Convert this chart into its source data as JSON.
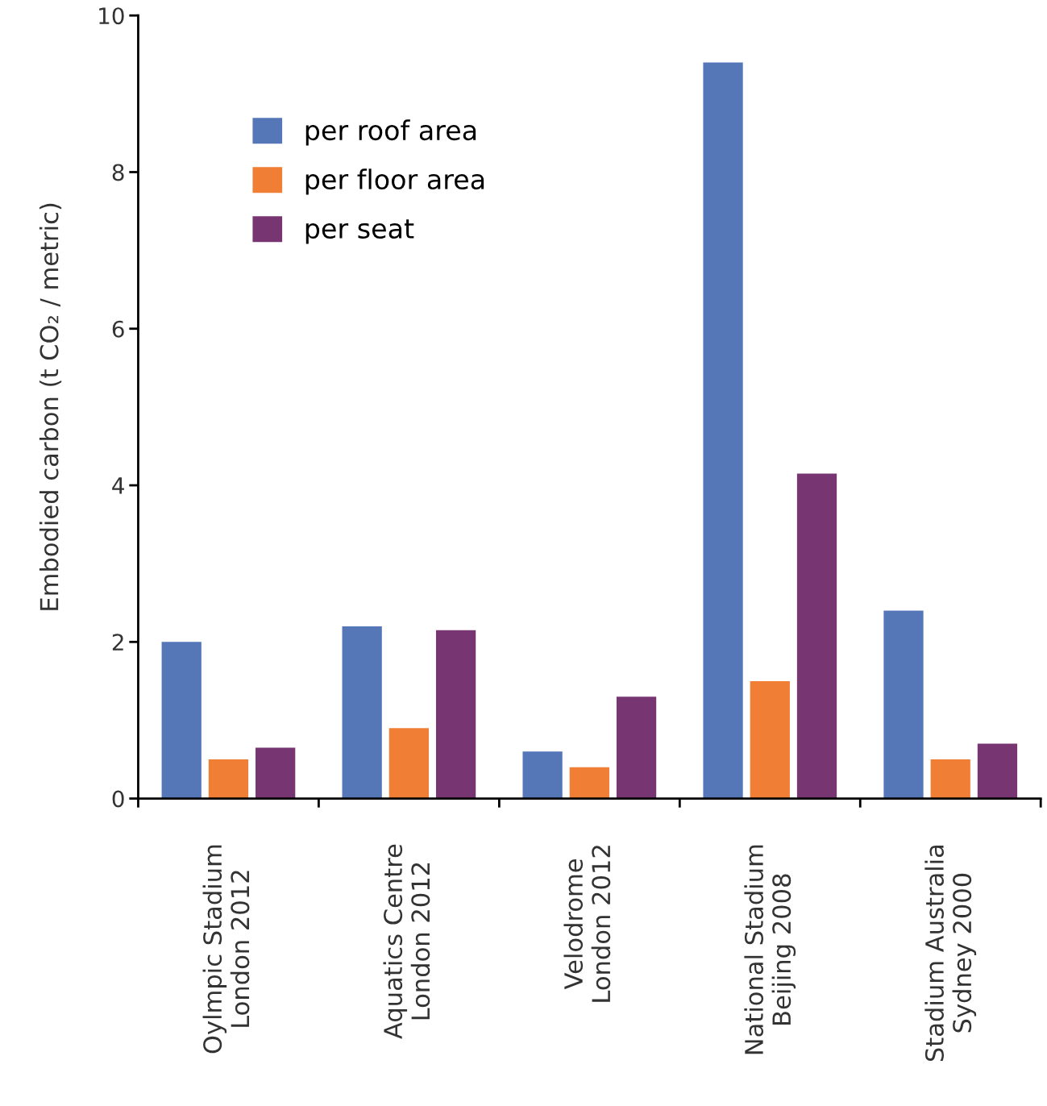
{
  "chart_data": {
    "type": "bar",
    "ylabel": "Embodied carbon (t CO₂ / metric)",
    "categories": [
      "Oylmpic Stadium\nLondon 2012",
      "Aquatics Centre\nLondon 2012",
      "Velodrome\nLondon 2012",
      "National Stadium\nBeijing 2008",
      "Stadium Australia\nSydney 2000"
    ],
    "series": [
      {
        "name": "per roof area",
        "color": "#5577b8",
        "values": [
          2.0,
          2.2,
          0.6,
          9.4,
          2.4
        ]
      },
      {
        "name": "per floor area",
        "color": "#f07f35",
        "values": [
          0.5,
          0.9,
          0.4,
          1.5,
          0.5
        ]
      },
      {
        "name": "per seat",
        "color": "#773672",
        "values": [
          0.65,
          2.15,
          1.3,
          4.15,
          0.7
        ]
      }
    ],
    "ylim": [
      0,
      10
    ],
    "yticks": [
      0,
      2,
      4,
      6,
      8,
      10
    ],
    "grid": false,
    "legend": "top left"
  }
}
